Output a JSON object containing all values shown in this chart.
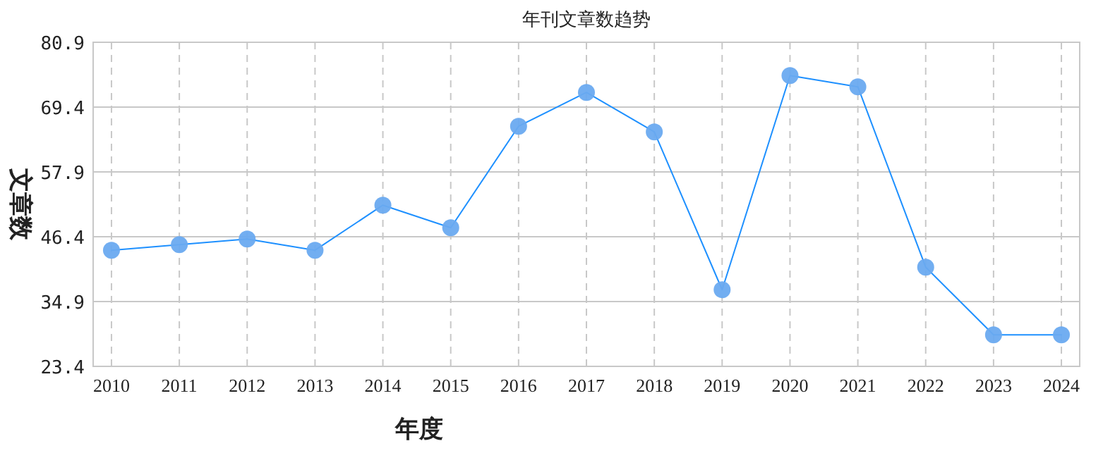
{
  "chart_data": {
    "type": "line",
    "title": "年刊文章数趋势",
    "xlabel": "年度",
    "ylabel": "文章数",
    "categories": [
      "2010",
      "2011",
      "2012",
      "2013",
      "2014",
      "2015",
      "2016",
      "2017",
      "2018",
      "2019",
      "2020",
      "2021",
      "2022",
      "2023",
      "2024"
    ],
    "series": [
      {
        "color": "#1e90ff",
        "values": [
          44,
          45,
          46,
          44,
          52,
          48,
          66,
          72,
          65,
          37,
          75,
          73,
          41,
          29,
          29
        ]
      }
    ],
    "ylim": [
      23.4,
      80.9
    ],
    "yticks": [
      23.4,
      34.9,
      46.4,
      57.9,
      69.4,
      80.9
    ],
    "grid": true,
    "marker": "circle",
    "line_style": "solid"
  }
}
